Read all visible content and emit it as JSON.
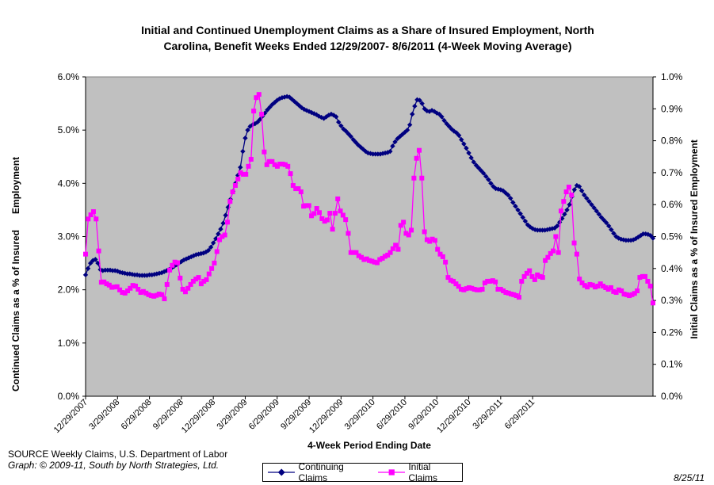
{
  "chart_data": {
    "type": "line",
    "title": "Initial and Continued Unemployment Claims as a Share of Insured Employment, North Carolina, Benefit Weeks Ended 12/29/2007- 8/6/2011 (4-Week Moving Average)",
    "title_lines": [
      "Initial and Continued Unemployment Claims as a Share of Insured Employment, North",
      "Carolina, Benefit Weeks Ended 12/29/2007- 8/6/2011 (4-Week Moving Average)"
    ],
    "xlabel": "4-Week Period Ending Date",
    "ylabel_left": "Continued Claims as a % of Insured      Employment",
    "ylabel_right": "Initial Claims as a % of Insured Employment",
    "x_ticks": [
      "12/29/2007",
      "3/29/2008",
      "6/29/2008",
      "9/29/2008",
      "12/29/2008",
      "3/29/2009",
      "6/29/2009",
      "9/29/2009",
      "12/29/2009",
      "3/29/2010",
      "6/29/2010",
      "9/29/2010",
      "12/29/2010",
      "3/29/2011",
      "6/29/2011"
    ],
    "y_left_ticks": [
      "0.0%",
      "1.0%",
      "2.0%",
      "3.0%",
      "4.0%",
      "5.0%",
      "6.0%"
    ],
    "y_right_ticks": [
      "0.0%",
      "0.1%",
      "0.2%",
      "0.3%",
      "0.4%",
      "0.5%",
      "0.6%",
      "0.7%",
      "0.8%",
      "0.9%",
      "1.0%"
    ],
    "ylim_left": [
      0,
      6
    ],
    "ylim_right": [
      0,
      1
    ],
    "x_range_weeks": [
      0,
      188
    ],
    "grid": false,
    "plot_background": "#c0c0c0",
    "legend_position": "bottom",
    "series": [
      {
        "name": "Continuing Claims",
        "axis": "left",
        "color": "#000080",
        "marker": "diamond",
        "values": [
          2.28,
          2.4,
          2.5,
          2.55,
          2.57,
          2.5,
          2.38,
          2.36,
          2.37,
          2.37,
          2.37,
          2.36,
          2.36,
          2.35,
          2.33,
          2.32,
          2.31,
          2.3,
          2.3,
          2.29,
          2.28,
          2.28,
          2.27,
          2.27,
          2.27,
          2.27,
          2.28,
          2.28,
          2.29,
          2.3,
          2.31,
          2.32,
          2.34,
          2.36,
          2.38,
          2.41,
          2.44,
          2.47,
          2.5,
          2.53,
          2.56,
          2.58,
          2.6,
          2.62,
          2.64,
          2.66,
          2.67,
          2.68,
          2.69,
          2.71,
          2.74,
          2.8,
          2.88,
          2.96,
          3.05,
          3.14,
          3.25,
          3.4,
          3.55,
          3.7,
          3.85,
          4.0,
          4.15,
          4.3,
          4.6,
          4.85,
          5.0,
          5.07,
          5.1,
          5.12,
          5.15,
          5.2,
          5.26,
          5.32,
          5.38,
          5.43,
          5.48,
          5.52,
          5.56,
          5.59,
          5.61,
          5.62,
          5.63,
          5.62,
          5.58,
          5.54,
          5.5,
          5.46,
          5.42,
          5.39,
          5.37,
          5.35,
          5.33,
          5.31,
          5.29,
          5.26,
          5.24,
          5.22,
          5.25,
          5.28,
          5.3,
          5.28,
          5.25,
          5.15,
          5.08,
          5.02,
          4.98,
          4.93,
          4.88,
          4.82,
          4.77,
          4.72,
          4.68,
          4.64,
          4.6,
          4.57,
          4.56,
          4.55,
          4.55,
          4.55,
          4.55,
          4.56,
          4.57,
          4.58,
          4.6,
          4.7,
          4.78,
          4.84,
          4.88,
          4.92,
          4.96,
          5.0,
          5.1,
          5.3,
          5.45,
          5.57,
          5.56,
          5.5,
          5.4,
          5.36,
          5.35,
          5.37,
          5.35,
          5.32,
          5.3,
          5.25,
          5.18,
          5.12,
          5.07,
          5.02,
          4.98,
          4.95,
          4.9,
          4.82,
          4.74,
          4.66,
          4.57,
          4.48,
          4.4,
          4.34,
          4.29,
          4.24,
          4.19,
          4.13,
          4.07,
          4.0,
          3.94,
          3.9,
          3.89,
          3.88,
          3.86,
          3.82,
          3.78,
          3.72,
          3.64,
          3.57,
          3.5,
          3.43,
          3.36,
          3.29,
          3.22,
          3.18,
          3.15,
          3.13,
          3.12,
          3.12,
          3.12,
          3.12,
          3.13,
          3.14,
          3.15,
          3.16,
          3.2,
          3.27,
          3.34,
          3.42,
          3.5,
          3.6,
          3.75,
          3.88,
          3.96,
          3.94,
          3.86,
          3.78,
          3.72,
          3.66,
          3.6,
          3.54,
          3.48,
          3.42,
          3.36,
          3.31,
          3.26,
          3.2,
          3.13,
          3.06,
          3.0,
          2.97,
          2.95,
          2.94,
          2.93,
          2.93,
          2.93,
          2.94,
          2.96,
          2.99,
          3.02,
          3.05,
          3.05,
          3.04,
          3.02,
          2.97
        ]
      },
      {
        "name": "Initial Claims",
        "axis": "right",
        "color": "#ff00ff",
        "marker": "square",
        "values": [
          0.445,
          0.555,
          0.568,
          0.578,
          0.555,
          0.455,
          0.357,
          0.358,
          0.352,
          0.348,
          0.341,
          0.342,
          0.343,
          0.333,
          0.325,
          0.323,
          0.33,
          0.338,
          0.347,
          0.345,
          0.335,
          0.325,
          0.328,
          0.323,
          0.318,
          0.315,
          0.313,
          0.316,
          0.32,
          0.318,
          0.305,
          0.35,
          0.395,
          0.41,
          0.42,
          0.418,
          0.37,
          0.335,
          0.327,
          0.338,
          0.35,
          0.36,
          0.367,
          0.372,
          0.352,
          0.36,
          0.365,
          0.383,
          0.4,
          0.417,
          0.453,
          0.49,
          0.5,
          0.505,
          0.545,
          0.61,
          0.64,
          0.66,
          0.68,
          0.7,
          0.695,
          0.695,
          0.72,
          0.742,
          0.893,
          0.935,
          0.945,
          0.883,
          0.765,
          0.725,
          0.735,
          0.735,
          0.725,
          0.72,
          0.727,
          0.727,
          0.725,
          0.72,
          0.697,
          0.66,
          0.65,
          0.65,
          0.64,
          0.595,
          0.597,
          0.597,
          0.565,
          0.572,
          0.588,
          0.575,
          0.556,
          0.548,
          0.552,
          0.573,
          0.523,
          0.573,
          0.618,
          0.58,
          0.567,
          0.553,
          0.51,
          0.45,
          0.45,
          0.45,
          0.44,
          0.435,
          0.428,
          0.43,
          0.425,
          0.423,
          0.42,
          0.418,
          0.428,
          0.432,
          0.438,
          0.442,
          0.45,
          0.462,
          0.473,
          0.46,
          0.535,
          0.545,
          0.51,
          0.505,
          0.52,
          0.683,
          0.745,
          0.77,
          0.683,
          0.515,
          0.49,
          0.485,
          0.492,
          0.488,
          0.46,
          0.445,
          0.437,
          0.42,
          0.372,
          0.363,
          0.36,
          0.352,
          0.344,
          0.335,
          0.333,
          0.337,
          0.34,
          0.338,
          0.335,
          0.333,
          0.333,
          0.335,
          0.355,
          0.36,
          0.36,
          0.362,
          0.358,
          0.335,
          0.335,
          0.33,
          0.325,
          0.323,
          0.32,
          0.318,
          0.315,
          0.31,
          0.36,
          0.375,
          0.385,
          0.393,
          0.375,
          0.365,
          0.38,
          0.375,
          0.372,
          0.425,
          0.435,
          0.447,
          0.455,
          0.5,
          0.45,
          0.58,
          0.61,
          0.64,
          0.655,
          0.63,
          0.48,
          0.445,
          0.367,
          0.355,
          0.347,
          0.342,
          0.35,
          0.348,
          0.342,
          0.345,
          0.352,
          0.345,
          0.34,
          0.335,
          0.34,
          0.328,
          0.325,
          0.333,
          0.33,
          0.32,
          0.318,
          0.315,
          0.318,
          0.322,
          0.33,
          0.372,
          0.375,
          0.375,
          0.36,
          0.345,
          0.292
        ]
      }
    ]
  },
  "source_note": "SOURCE  Weekly Claims, U.S. Department of Labor",
  "graph_credit": "Graph: © 2009-11, South by North Strategies, Ltd.",
  "date_stamp": "8/25/11"
}
